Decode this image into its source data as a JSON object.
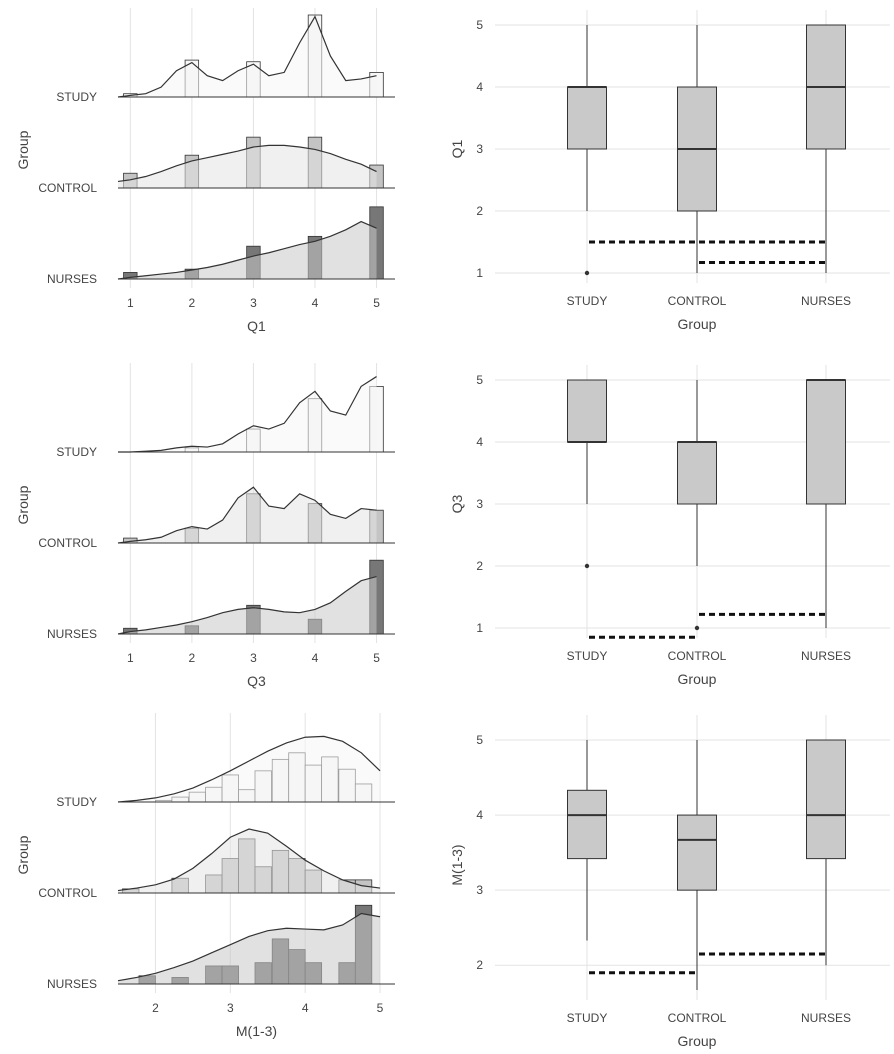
{
  "colors": {
    "background": "#ffffff",
    "grid": "#e3e3e3",
    "study_fill": "#f6f6f6",
    "control_fill": "#e3e3e3",
    "nurses_fill": "#c9c9c9",
    "study_hist": "#f7f7f7",
    "control_hist": "#c4c4c4",
    "nurses_hist": "#777777",
    "box_fill": "#c9c9c9",
    "line": "#333333",
    "text": "#444444"
  },
  "chart_data": [
    {
      "type": "ridgeline",
      "xlabel": "Q1",
      "ylabel": "Group",
      "xlim": [
        0.8,
        5.3
      ],
      "xticks": [
        "1",
        "2",
        "3",
        "4",
        "5"
      ],
      "groups": [
        "STUDY",
        "CONTROL",
        "NURSES"
      ],
      "histogram": {
        "bins": [
          1,
          2,
          3,
          4,
          5
        ],
        "counts": {
          "STUDY": [
            0.04,
            0.45,
            0.43,
            1.0,
            0.3
          ],
          "CONTROL": [
            0.18,
            0.4,
            0.62,
            0.62,
            0.28
          ],
          "NURSES": [
            0.08,
            0.12,
            0.4,
            0.52,
            0.88
          ]
        }
      },
      "density": {
        "x": [
          0.8,
          1.0,
          1.25,
          1.5,
          1.75,
          2.0,
          2.25,
          2.5,
          2.75,
          3.0,
          3.25,
          3.5,
          3.75,
          4.0,
          4.25,
          4.5,
          4.75,
          5.0
        ],
        "STUDY": [
          0.0,
          0.02,
          0.04,
          0.12,
          0.32,
          0.42,
          0.26,
          0.2,
          0.32,
          0.4,
          0.26,
          0.3,
          0.66,
          0.98,
          0.5,
          0.2,
          0.22,
          0.26
        ],
        "CONTROL": [
          0.08,
          0.1,
          0.14,
          0.2,
          0.27,
          0.33,
          0.37,
          0.41,
          0.45,
          0.5,
          0.52,
          0.52,
          0.5,
          0.47,
          0.42,
          0.35,
          0.29,
          0.2
        ],
        "NURSES": [
          0.0,
          0.02,
          0.04,
          0.06,
          0.08,
          0.11,
          0.14,
          0.18,
          0.23,
          0.28,
          0.32,
          0.37,
          0.42,
          0.46,
          0.52,
          0.6,
          0.7,
          0.62
        ]
      }
    },
    {
      "type": "box",
      "xlabel": "Group",
      "ylabel": "Q1",
      "categories": [
        "STUDY",
        "CONTROL",
        "NURSES"
      ],
      "ylim": [
        1,
        5
      ],
      "yticks": [
        "1",
        "2",
        "3",
        "4",
        "5"
      ],
      "boxes": [
        {
          "q1": 3,
          "median": 4,
          "q3": 4,
          "whisker_low": 2,
          "whisker_high": 5,
          "outliers": [
            1
          ]
        },
        {
          "q1": 2,
          "median": 3,
          "q3": 4,
          "whisker_low": 1,
          "whisker_high": 5,
          "outliers": []
        },
        {
          "q1": 3,
          "median": 4,
          "q3": 5,
          "whisker_low": 1,
          "whisker_high": 5,
          "outliers": []
        }
      ],
      "brackets": [
        {
          "from": "STUDY",
          "to": "NURSES",
          "y": 1.5
        },
        {
          "from": "CONTROL",
          "to": "NURSES",
          "y": 1.17
        }
      ]
    },
    {
      "type": "ridgeline",
      "xlabel": "Q3",
      "ylabel": "Group",
      "xlim": [
        0.8,
        5.3
      ],
      "xticks": [
        "1",
        "2",
        "3",
        "4",
        "5"
      ],
      "groups": [
        "STUDY",
        "CONTROL",
        "NURSES"
      ],
      "histogram": {
        "bins": [
          1,
          2,
          3,
          4,
          5
        ],
        "counts": {
          "STUDY": [
            0.0,
            0.05,
            0.28,
            0.65,
            0.8
          ],
          "CONTROL": [
            0.06,
            0.18,
            0.6,
            0.48,
            0.4
          ],
          "NURSES": [
            0.07,
            0.1,
            0.35,
            0.18,
            0.9
          ]
        }
      },
      "density": {
        "x": [
          0.8,
          1.0,
          1.25,
          1.5,
          1.75,
          2.0,
          2.25,
          2.5,
          2.75,
          3.0,
          3.25,
          3.5,
          3.75,
          4.0,
          4.25,
          4.5,
          4.75,
          5.0
        ],
        "STUDY": [
          0.0,
          0.0,
          0.01,
          0.02,
          0.05,
          0.07,
          0.06,
          0.1,
          0.22,
          0.32,
          0.28,
          0.35,
          0.6,
          0.74,
          0.5,
          0.45,
          0.8,
          0.92
        ],
        "CONTROL": [
          0.0,
          0.02,
          0.04,
          0.07,
          0.15,
          0.2,
          0.17,
          0.28,
          0.55,
          0.68,
          0.45,
          0.42,
          0.6,
          0.52,
          0.35,
          0.3,
          0.42,
          0.4
        ],
        "NURSES": [
          0.0,
          0.03,
          0.05,
          0.08,
          0.11,
          0.15,
          0.2,
          0.26,
          0.3,
          0.32,
          0.3,
          0.27,
          0.26,
          0.3,
          0.38,
          0.52,
          0.65,
          0.7
        ]
      }
    },
    {
      "type": "box",
      "xlabel": "Group",
      "ylabel": "Q3",
      "categories": [
        "STUDY",
        "CONTROL",
        "NURSES"
      ],
      "ylim": [
        1,
        5
      ],
      "yticks": [
        "1",
        "2",
        "3",
        "4",
        "5"
      ],
      "boxes": [
        {
          "q1": 4,
          "median": 4,
          "q3": 5,
          "whisker_low": 3,
          "whisker_high": 5,
          "outliers": [
            2
          ]
        },
        {
          "q1": 3,
          "median": 4,
          "q3": 4,
          "whisker_low": 2,
          "whisker_high": 5,
          "outliers": [
            1
          ]
        },
        {
          "q1": 3,
          "median": 5,
          "q3": 5,
          "whisker_low": 1,
          "whisker_high": 5,
          "outliers": []
        }
      ],
      "brackets": [
        {
          "from": "STUDY",
          "to": "CONTROL",
          "y": 0.85
        },
        {
          "from": "CONTROL",
          "to": "NURSES",
          "y": 1.22
        }
      ]
    },
    {
      "type": "ridgeline",
      "xlabel": "M(1-3)",
      "ylabel": "Group",
      "xlim": [
        1.5,
        5.2
      ],
      "xticks": [
        "2",
        "3",
        "4",
        "5"
      ],
      "xtick_values": [
        2,
        3,
        4,
        5
      ],
      "groups": [
        "STUDY",
        "CONTROL",
        "NURSES"
      ],
      "histogram": {
        "bins": [
          1.67,
          1.89,
          2.11,
          2.33,
          2.56,
          2.78,
          3.0,
          3.22,
          3.44,
          3.67,
          3.89,
          4.11,
          4.33,
          4.56,
          4.78
        ],
        "counts": {
          "STUDY": [
            0.0,
            0.0,
            0.02,
            0.06,
            0.12,
            0.18,
            0.33,
            0.15,
            0.38,
            0.52,
            0.6,
            0.45,
            0.55,
            0.4,
            0.22
          ],
          "CONTROL": [
            0.05,
            0.0,
            0.0,
            0.18,
            0.0,
            0.22,
            0.42,
            0.66,
            0.32,
            0.52,
            0.42,
            0.28,
            0.0,
            0.16,
            0.16
          ],
          "NURSES": [
            0.0,
            0.1,
            0.0,
            0.08,
            0.0,
            0.22,
            0.22,
            0.0,
            0.26,
            0.55,
            0.42,
            0.26,
            0.0,
            0.26,
            0.96
          ]
        }
      },
      "density": {
        "x": [
          1.5,
          1.75,
          2.0,
          2.25,
          2.5,
          2.75,
          3.0,
          3.25,
          3.5,
          3.75,
          4.0,
          4.25,
          4.5,
          4.75,
          5.0
        ],
        "STUDY": [
          0.0,
          0.02,
          0.05,
          0.1,
          0.17,
          0.27,
          0.38,
          0.5,
          0.62,
          0.72,
          0.79,
          0.8,
          0.74,
          0.6,
          0.38
        ],
        "CONTROL": [
          0.03,
          0.06,
          0.1,
          0.17,
          0.3,
          0.48,
          0.68,
          0.78,
          0.73,
          0.57,
          0.4,
          0.27,
          0.16,
          0.09,
          0.06
        ],
        "NURSES": [
          0.04,
          0.08,
          0.13,
          0.2,
          0.28,
          0.38,
          0.48,
          0.58,
          0.65,
          0.68,
          0.67,
          0.66,
          0.72,
          0.86,
          0.82
        ]
      }
    },
    {
      "type": "box",
      "xlabel": "Group",
      "ylabel": "M(1-3)",
      "categories": [
        "STUDY",
        "CONTROL",
        "NURSES"
      ],
      "ylim": [
        1.67,
        5
      ],
      "yticks": [
        "2",
        "3",
        "4",
        "5"
      ],
      "ytick_values": [
        2,
        3,
        4,
        5
      ],
      "boxes": [
        {
          "q1": 3.42,
          "median": 4.0,
          "q3": 4.33,
          "whisker_low": 2.33,
          "whisker_high": 5,
          "outliers": []
        },
        {
          "q1": 3.0,
          "median": 3.67,
          "q3": 4.0,
          "whisker_low": 1.67,
          "whisker_high": 5,
          "outliers": []
        },
        {
          "q1": 3.42,
          "median": 4.0,
          "q3": 5.0,
          "whisker_low": 2.0,
          "whisker_high": 5,
          "outliers": []
        }
      ],
      "brackets": [
        {
          "from": "STUDY",
          "to": "CONTROL",
          "y": 1.9
        },
        {
          "from": "CONTROL",
          "to": "NURSES",
          "y": 2.15
        }
      ]
    }
  ]
}
